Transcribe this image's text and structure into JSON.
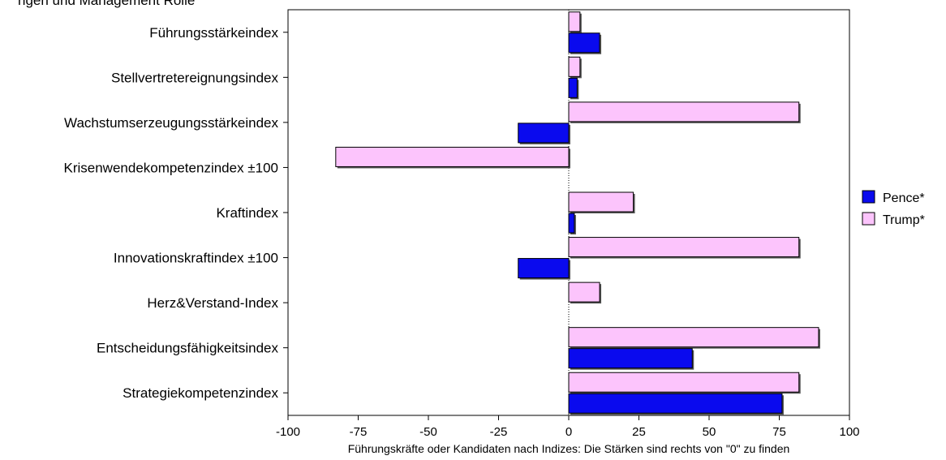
{
  "chart_data": {
    "type": "bar",
    "orientation": "horizontal",
    "title": "",
    "top_text": "ngen und Management Rolle",
    "xlabel": "Führungskräfte oder Kandidaten nach Indizes: Die Stärken sind rechts von \"0\" zu finden",
    "ylabel": "",
    "xlim": [
      -100,
      100
    ],
    "xticks": [
      -100,
      -75,
      -50,
      -25,
      0,
      25,
      50,
      75,
      100
    ],
    "xtick_labels": [
      "-100",
      "-75",
      "-50",
      "-25",
      "0",
      "25",
      "50",
      "75",
      "100"
    ],
    "categories": [
      "Führungsstärkeindex",
      "Stellvertretereignungsindex",
      "Wachstumserzeugungsstärkeindex",
      "Krisenwendekompetenzindex ±100",
      "Kraftindex",
      "Innovationskraftindex ±100",
      "Herz&Verstand-Index",
      "Entscheidungsfähigkeitsindex",
      "Strategiekompetenzindex"
    ],
    "series": [
      {
        "name": "Pence*",
        "color": "#0a0aee",
        "values": [
          11,
          3,
          -18,
          0,
          2,
          -18,
          0,
          44,
          76
        ]
      },
      {
        "name": "Trump*",
        "color": "#fcc4fc",
        "values": [
          4,
          4,
          82,
          -83,
          23,
          82,
          11,
          89,
          82
        ]
      }
    ],
    "legend": {
      "position": "right",
      "entries": [
        "Pence*",
        "Trump*"
      ]
    },
    "grid": false
  }
}
